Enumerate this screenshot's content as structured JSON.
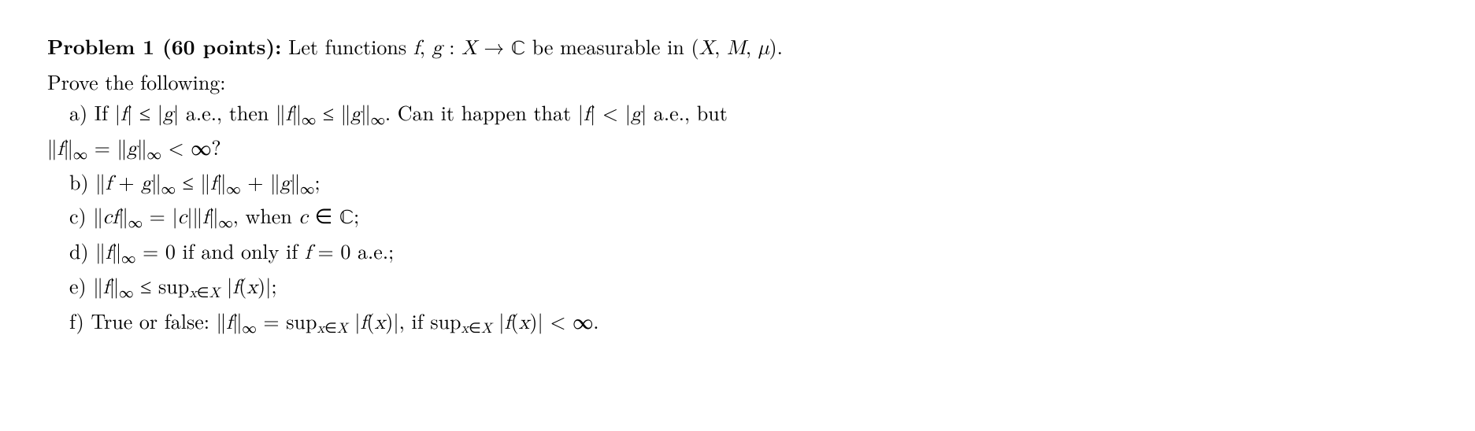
{
  "header": "Problem 1 (60 points):",
  "intro": " Let functions f, g : X → ℂ be measurable in (X, M, μ).",
  "prove": "Prove the following:",
  "parts": {
    "a": "a) If |f| ≤ |g| a.e., then ∥f∥∞ ≤ ∥g∥∞. Can it happen that |f| < |g| a.e., but",
    "a2": "∥f∥∞ = ∥g∥∞ < ∞?",
    "b": "b) ∥f + g∥∞ ≤ ∥f∥∞ + ∥g∥∞;",
    "c": "c) ∥cf∥∞ = |c|∥f∥∞, when c ∈ ℂ;",
    "d": "d) ∥f∥∞ = 0 if and only if f = 0 a.e.;",
    "e": "e) ∥f∥∞ ≤ supx∈X |f(x)|;",
    "f": "f) True or false: ∥f∥∞ = supx∈X |f(x)|, if supx∈X |f(x)| < ∞."
  }
}
